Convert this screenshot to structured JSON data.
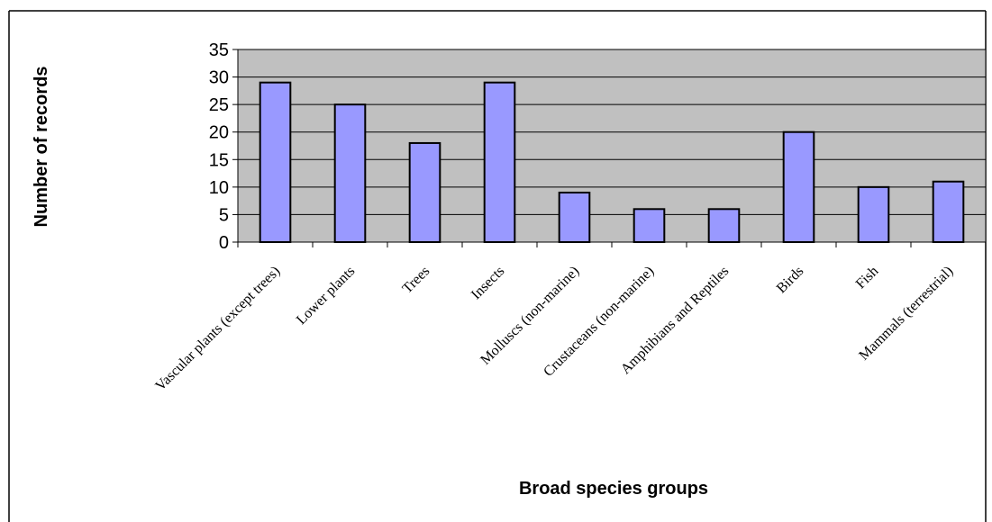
{
  "colors": {
    "plot_background": "#c0c0c0",
    "bar_fill": "#9999ff",
    "bar_stroke": "#000000",
    "gridline": "#000000"
  },
  "chart_data": {
    "type": "bar",
    "title": "",
    "xlabel": "Broad species groups",
    "ylabel": "Number of records",
    "ylim": [
      0,
      35
    ],
    "yticks": [
      0,
      5,
      10,
      15,
      20,
      25,
      30,
      35
    ],
    "grid": true,
    "categories": [
      "Vascular plants (except trees)",
      "Lower plants",
      "Trees",
      "Insects",
      "Molluscs (non-marine)",
      "Crustaceans (non-marine)",
      "Amphibians and Reptiles",
      "Birds",
      "Fish",
      "Mammals (terrestrial)"
    ],
    "values": [
      29,
      25,
      18,
      29,
      9,
      6,
      6,
      20,
      10,
      11
    ]
  }
}
